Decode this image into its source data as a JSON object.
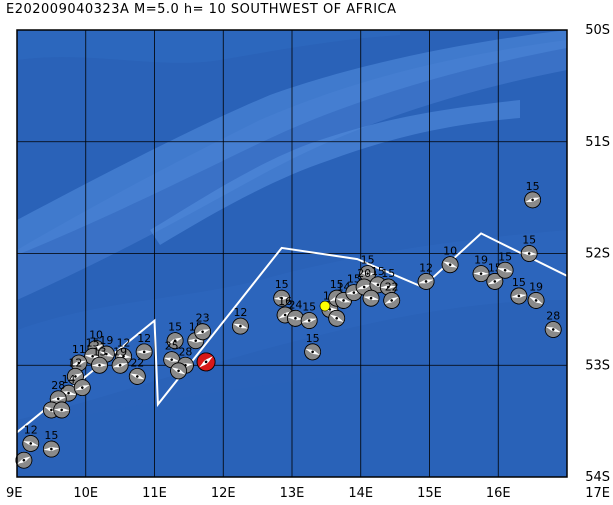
{
  "title": "E202009040323A M=5.0 h= 10 SOUTHWEST OF AFRICA",
  "map": {
    "lon_min": 9,
    "lon_max": 17,
    "lat_max": -50,
    "lat_min": -54,
    "x_ticks": [
      "9E",
      "10E",
      "11E",
      "12E",
      "13E",
      "14E",
      "15E",
      "16E",
      "17E"
    ],
    "y_ticks": [
      "50S",
      "51S",
      "52S",
      "53S",
      "54S"
    ],
    "colors": {
      "ocean": "#2a62b8",
      "ridge": "#4a84d6",
      "grid": "#000000",
      "plate_boundary": "#ffffff",
      "main_event": "#d81818",
      "highlight_event": "#ffff00"
    }
  },
  "plate_boundary": [
    [
      9,
      -53.6
    ],
    [
      11.0,
      -52.6
    ],
    [
      11.05,
      -53.35
    ],
    [
      12.85,
      -51.95
    ],
    [
      13.95,
      -52.05
    ],
    [
      14.9,
      -52.3
    ],
    [
      15.75,
      -51.82
    ],
    [
      17,
      -52.2
    ]
  ],
  "events": [
    {
      "lon": 10.15,
      "lat": -52.85,
      "label": "10"
    },
    {
      "lon": 10.1,
      "lat": -52.92,
      "label": "15"
    },
    {
      "lon": 9.9,
      "lat": -52.98,
      "label": "11"
    },
    {
      "lon": 10.3,
      "lat": -52.9,
      "label": "19"
    },
    {
      "lon": 10.2,
      "lat": -53.0,
      "label": "13"
    },
    {
      "lon": 9.85,
      "lat": -53.1,
      "label": "12"
    },
    {
      "lon": 9.75,
      "lat": -53.25,
      "label": "14"
    },
    {
      "lon": 9.6,
      "lat": -53.3,
      "label": "28"
    },
    {
      "lon": 9.5,
      "lat": -53.4,
      "label": ""
    },
    {
      "lon": 9.65,
      "lat": -53.4,
      "label": ""
    },
    {
      "lon": 9.95,
      "lat": -53.2,
      "label": ""
    },
    {
      "lon": 9.2,
      "lat": -53.7,
      "label": "12"
    },
    {
      "lon": 9.5,
      "lat": -53.75,
      "label": "15"
    },
    {
      "lon": 9.1,
      "lat": -53.85,
      "label": ""
    },
    {
      "lon": 10.55,
      "lat": -52.92,
      "label": "12"
    },
    {
      "lon": 10.5,
      "lat": -53.0,
      "label": "19"
    },
    {
      "lon": 10.75,
      "lat": -53.1,
      "label": "22"
    },
    {
      "lon": 10.85,
      "lat": -52.88,
      "label": "12"
    },
    {
      "lon": 11.3,
      "lat": -52.78,
      "label": "15"
    },
    {
      "lon": 11.25,
      "lat": -52.95,
      "label": "25"
    },
    {
      "lon": 11.45,
      "lat": -53.0,
      "label": "28"
    },
    {
      "lon": 11.35,
      "lat": -53.05,
      "label": ""
    },
    {
      "lon": 11.6,
      "lat": -52.78,
      "label": "15"
    },
    {
      "lon": 11.7,
      "lat": -52.7,
      "label": "23"
    },
    {
      "lon": 12.25,
      "lat": -52.65,
      "label": "12"
    },
    {
      "lon": 12.85,
      "lat": -52.4,
      "label": "15"
    },
    {
      "lon": 12.9,
      "lat": -52.55,
      "label": "16"
    },
    {
      "lon": 13.05,
      "lat": -52.58,
      "label": "24"
    },
    {
      "lon": 13.25,
      "lat": -52.6,
      "label": "15"
    },
    {
      "lon": 13.3,
      "lat": -52.88,
      "label": "15"
    },
    {
      "lon": 13.55,
      "lat": -52.5,
      "label": "13"
    },
    {
      "lon": 13.65,
      "lat": -52.4,
      "label": "15"
    },
    {
      "lon": 13.75,
      "lat": -52.42,
      "label": "14"
    },
    {
      "lon": 13.9,
      "lat": -52.35,
      "label": "15"
    },
    {
      "lon": 13.65,
      "lat": -52.58,
      "label": ""
    },
    {
      "lon": 14.1,
      "lat": -52.18,
      "label": "15"
    },
    {
      "lon": 14.05,
      "lat": -52.3,
      "label": "20"
    },
    {
      "lon": 14.25,
      "lat": -52.28,
      "label": "15"
    },
    {
      "lon": 14.4,
      "lat": -52.3,
      "label": "15"
    },
    {
      "lon": 14.45,
      "lat": -52.42,
      "label": "22"
    },
    {
      "lon": 14.15,
      "lat": -52.4,
      "label": ""
    },
    {
      "lon": 14.95,
      "lat": -52.25,
      "label": "12"
    },
    {
      "lon": 15.3,
      "lat": -52.1,
      "label": "10"
    },
    {
      "lon": 15.75,
      "lat": -52.18,
      "label": "19"
    },
    {
      "lon": 15.95,
      "lat": -52.25,
      "label": "15"
    },
    {
      "lon": 16.1,
      "lat": -52.15,
      "label": "15"
    },
    {
      "lon": 16.3,
      "lat": -52.38,
      "label": "15"
    },
    {
      "lon": 16.55,
      "lat": -52.42,
      "label": "19"
    },
    {
      "lon": 16.45,
      "lat": -52.0,
      "label": "15"
    },
    {
      "lon": 16.5,
      "lat": -51.52,
      "label": "15"
    },
    {
      "lon": 16.8,
      "lat": -52.68,
      "label": "28"
    }
  ],
  "highlight_event": {
    "lon": 13.48,
    "lat": -52.47,
    "label": ""
  },
  "main_event": {
    "lon": 11.75,
    "lat": -52.97,
    "label": ""
  }
}
